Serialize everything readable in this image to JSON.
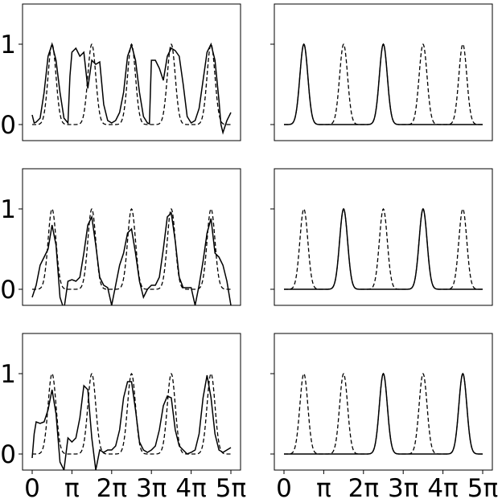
{
  "chart_data": {
    "type": "line",
    "layout": "3 rows x 2 columns of line panels",
    "xlim": [
      0,
      5
    ],
    "ylim": [
      -0.2,
      1.5
    ],
    "x_unit": "pi",
    "xticks": [
      0,
      1,
      2,
      3,
      4,
      5
    ],
    "xtick_labels": [
      "0",
      "π",
      "2π",
      "3π",
      "4π",
      "5π"
    ],
    "yticks": [
      0,
      1
    ],
    "ytick_labels": [
      "0",
      "1"
    ],
    "reference_peaks": [
      0.5,
      1.5,
      2.5,
      3.5,
      4.5
    ],
    "panels": [
      {
        "row": 1,
        "col": 1,
        "series": [
          {
            "style": "dashed",
            "peaks": [
              0.5,
              1.5,
              2.5,
              3.5,
              4.5
            ]
          },
          {
            "style": "solid",
            "x": [
              0,
              0.05,
              0.1,
              0.2,
              0.3,
              0.4,
              0.5,
              0.6,
              0.7,
              0.8,
              0.9,
              0.95,
              1.0,
              1.1,
              1.2,
              1.3,
              1.4,
              1.5,
              1.6,
              1.7,
              1.8,
              1.9,
              2.0,
              2.1,
              2.2,
              2.3,
              2.4,
              2.5,
              2.6,
              2.7,
              2.8,
              2.9,
              2.95,
              3.0,
              3.1,
              3.2,
              3.3,
              3.4,
              3.5,
              3.6,
              3.7,
              3.8,
              3.9,
              4.0,
              4.1,
              4.2,
              4.3,
              4.4,
              4.5,
              4.6,
              4.7,
              4.75,
              4.8,
              4.9,
              5.0
            ],
            "y": [
              0.12,
              0.02,
              0.03,
              0.08,
              0.4,
              0.85,
              1.0,
              0.8,
              0.4,
              0.08,
              0.02,
              0.6,
              0.9,
              0.95,
              0.85,
              0.9,
              0.45,
              0.8,
              0.75,
              0.78,
              0.25,
              0.05,
              0.02,
              0.05,
              0.15,
              0.4,
              0.85,
              0.99,
              0.8,
              0.4,
              0.1,
              0.02,
              0.01,
              0.8,
              0.8,
              0.7,
              0.55,
              0.85,
              0.95,
              0.92,
              0.85,
              0.5,
              0.1,
              0.02,
              0.05,
              0.2,
              0.55,
              0.9,
              1.0,
              0.8,
              0.3,
              0.0,
              -0.1,
              0.05,
              0.15
            ]
          }
        ]
      },
      {
        "row": 1,
        "col": 2,
        "series": [
          {
            "style": "dashed",
            "peaks": [
              0.5,
              1.5,
              2.5,
              3.5,
              4.5
            ]
          },
          {
            "style": "solid",
            "peaks": [
              0.5,
              2.5
            ],
            "amplitude": 1.0
          }
        ]
      },
      {
        "row": 2,
        "col": 1,
        "series": [
          {
            "style": "dashed",
            "peaks": [
              0.5,
              1.5,
              2.5,
              3.5,
              4.5
            ]
          },
          {
            "style": "solid",
            "x": [
              0,
              0.1,
              0.2,
              0.3,
              0.4,
              0.5,
              0.6,
              0.7,
              0.8,
              0.9,
              1.0,
              1.1,
              1.2,
              1.3,
              1.4,
              1.5,
              1.6,
              1.7,
              1.8,
              1.9,
              2.0,
              2.1,
              2.2,
              2.3,
              2.4,
              2.5,
              2.6,
              2.7,
              2.8,
              2.9,
              3.0,
              3.1,
              3.2,
              3.3,
              3.4,
              3.5,
              3.6,
              3.7,
              3.8,
              3.9,
              4.0,
              4.1,
              4.2,
              4.3,
              4.4,
              4.5,
              4.6,
              4.7,
              4.8,
              4.9,
              5.0
            ],
            "y": [
              -0.1,
              0.05,
              0.3,
              0.4,
              0.5,
              0.8,
              0.55,
              -0.1,
              -0.25,
              0.1,
              0.12,
              0.1,
              0.15,
              0.45,
              0.8,
              0.9,
              0.55,
              0.15,
              0.05,
              0.02,
              -0.2,
              0.05,
              0.3,
              0.45,
              0.7,
              0.75,
              0.45,
              0.1,
              -0.1,
              0.0,
              0.05,
              0.05,
              0.15,
              0.5,
              0.9,
              0.95,
              0.6,
              0.15,
              0.02,
              0.02,
              0.02,
              -0.2,
              0.05,
              0.35,
              0.7,
              0.88,
              0.45,
              0.4,
              0.3,
              0.1,
              -0.2
            ]
          }
        ]
      },
      {
        "row": 2,
        "col": 2,
        "series": [
          {
            "style": "dashed",
            "peaks": [
              0.5,
              1.5,
              2.5,
              3.5,
              4.5
            ]
          },
          {
            "style": "solid",
            "peaks": [
              1.5,
              3.5
            ],
            "amplitude": 1.0
          }
        ]
      },
      {
        "row": 3,
        "col": 1,
        "series": [
          {
            "style": "dashed",
            "peaks": [
              0.5,
              1.5,
              2.5,
              3.5,
              4.5
            ]
          },
          {
            "style": "solid",
            "x": [
              0,
              0.05,
              0.1,
              0.2,
              0.3,
              0.4,
              0.5,
              0.6,
              0.7,
              0.8,
              0.9,
              1.0,
              1.1,
              1.2,
              1.3,
              1.4,
              1.5,
              1.6,
              1.7,
              1.8,
              1.9,
              2.0,
              2.1,
              2.2,
              2.3,
              2.4,
              2.5,
              2.6,
              2.7,
              2.8,
              2.9,
              3.0,
              3.1,
              3.2,
              3.3,
              3.4,
              3.5,
              3.6,
              3.7,
              3.8,
              3.9,
              4.0,
              4.1,
              4.2,
              4.3,
              4.4,
              4.5,
              4.6,
              4.7,
              4.8,
              4.9,
              5.0
            ],
            "y": [
              -0.05,
              0.25,
              0.4,
              0.38,
              0.4,
              0.55,
              0.8,
              0.5,
              -0.1,
              -0.2,
              0.2,
              0.15,
              0.2,
              0.45,
              0.85,
              0.8,
              0.2,
              -0.2,
              0.05,
              0.02,
              0.05,
              0.05,
              0.1,
              0.3,
              0.7,
              0.9,
              0.9,
              0.55,
              0.15,
              0.05,
              0.02,
              0.05,
              0.1,
              0.3,
              0.6,
              0.72,
              0.7,
              0.3,
              0.1,
              0.05,
              0.0,
              0.02,
              0.05,
              0.25,
              0.7,
              0.98,
              0.7,
              0.25,
              0.05,
              0.02,
              0.05,
              0.08
            ]
          }
        ]
      },
      {
        "row": 3,
        "col": 2,
        "series": [
          {
            "style": "dashed",
            "peaks": [
              0.5,
              1.5,
              2.5,
              3.5,
              4.5
            ]
          },
          {
            "style": "solid",
            "peaks": [
              2.5,
              4.5
            ],
            "amplitude": 1.0
          }
        ]
      }
    ]
  }
}
